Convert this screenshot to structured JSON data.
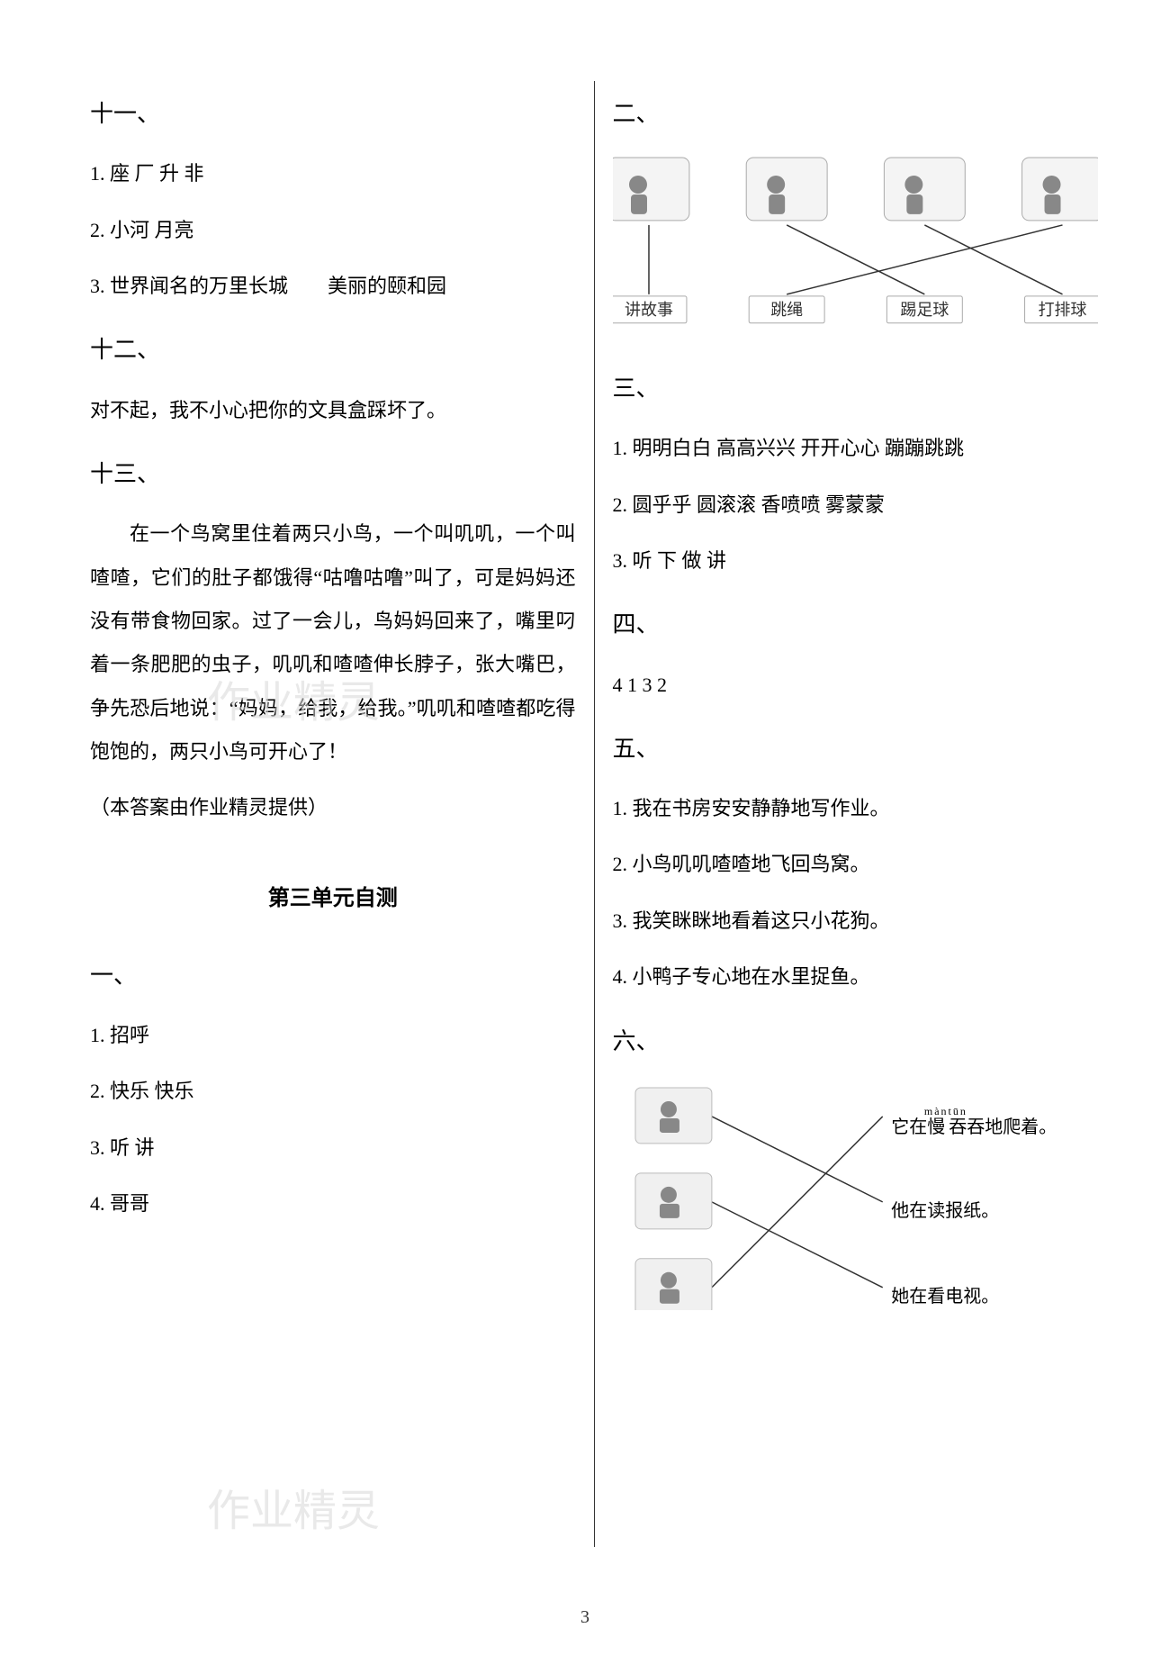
{
  "page_number": "3",
  "watermark_text": "作业精灵",
  "left": {
    "s11": {
      "label": "十一、",
      "items": [
        "1.  座  厂  升  非",
        "2.  小河  月亮",
        "3.  世界闻名的万里长城　　美丽的颐和园"
      ]
    },
    "s12": {
      "label": "十二、",
      "text": "对不起，我不小心把你的文具盒踩坏了。"
    },
    "s13": {
      "label": "十三、",
      "paragraph": "在一个鸟窝里住着两只小鸟，一个叫叽叽，一个叫喳喳，它们的肚子都饿得“咕噜咕噜”叫了，可是妈妈还没有带食物回家。过了一会儿，鸟妈妈回来了，嘴里叼着一条肥肥的虫子，叽叽和喳喳伸长脖子，张大嘴巴，争先恐后地说：“妈妈，给我，给我。”叽叽和喳喳都吃得饱饱的，两只小鸟可开心了！",
      "note": "（本答案由作业精灵提供）"
    },
    "unit_heading": "第三单元自测",
    "s1": {
      "label": "一、",
      "items": [
        "1.  招呼",
        "2.  快乐  快乐",
        "3.  听  讲",
        "4.  哥哥"
      ]
    }
  },
  "right": {
    "s2": {
      "label": "二、",
      "diagram": {
        "top_icons": [
          "讲故事图",
          "踢足球图",
          "打排球图",
          "跳绳图"
        ],
        "bottom_labels": [
          "讲故事",
          "跳绳",
          "踢足球",
          "打排球"
        ],
        "box_fill": "#f4f4f4",
        "box_stroke": "#aaaaaa",
        "line_color": "#333333",
        "font_size": 18,
        "edges": [
          {
            "from": 0,
            "to": 0
          },
          {
            "from": 1,
            "to": 2
          },
          {
            "from": 2,
            "to": 3
          },
          {
            "from": 3,
            "to": 1
          }
        ]
      }
    },
    "s3": {
      "label": "三、",
      "items": [
        "1.  明明白白  高高兴兴  开开心心  蹦蹦跳跳",
        "2.  圆乎乎  圆滚滚  香喷喷  雾蒙蒙",
        "3.  听  下  做  讲"
      ]
    },
    "s4": {
      "label": "四、",
      "items": [
        "4 1 3 2"
      ]
    },
    "s5": {
      "label": "五、",
      "items": [
        "1.  我在书房安安静静地写作业。",
        "2.  小鸟叽叽喳喳地飞回鸟窝。",
        "3.  我笑眯眯地看着这只小花狗。",
        "4.  小鸭子专心地在水里捉鱼。"
      ]
    },
    "s6": {
      "label": "六、",
      "diagram": {
        "left_icons": [
          "人坐沙发图",
          "电视机图",
          "乌龟图"
        ],
        "right_sentences": [
          {
            "pre": "它在",
            "ruby": [
              {
                "t": "慢",
                "r": "màn"
              },
              {
                "t": "吞",
                "r": "tūn"
              }
            ],
            "post": "吞地爬着。"
          },
          {
            "text": "他在读报纸。"
          },
          {
            "text": "她在看电视。"
          }
        ],
        "box_fill": "#f0f0f0",
        "box_stroke": "#bbbbbb",
        "line_color": "#333333",
        "font_size": 20,
        "edges": [
          {
            "from": 0,
            "to": 1
          },
          {
            "from": 1,
            "to": 2
          },
          {
            "from": 2,
            "to": 0
          }
        ]
      }
    }
  }
}
